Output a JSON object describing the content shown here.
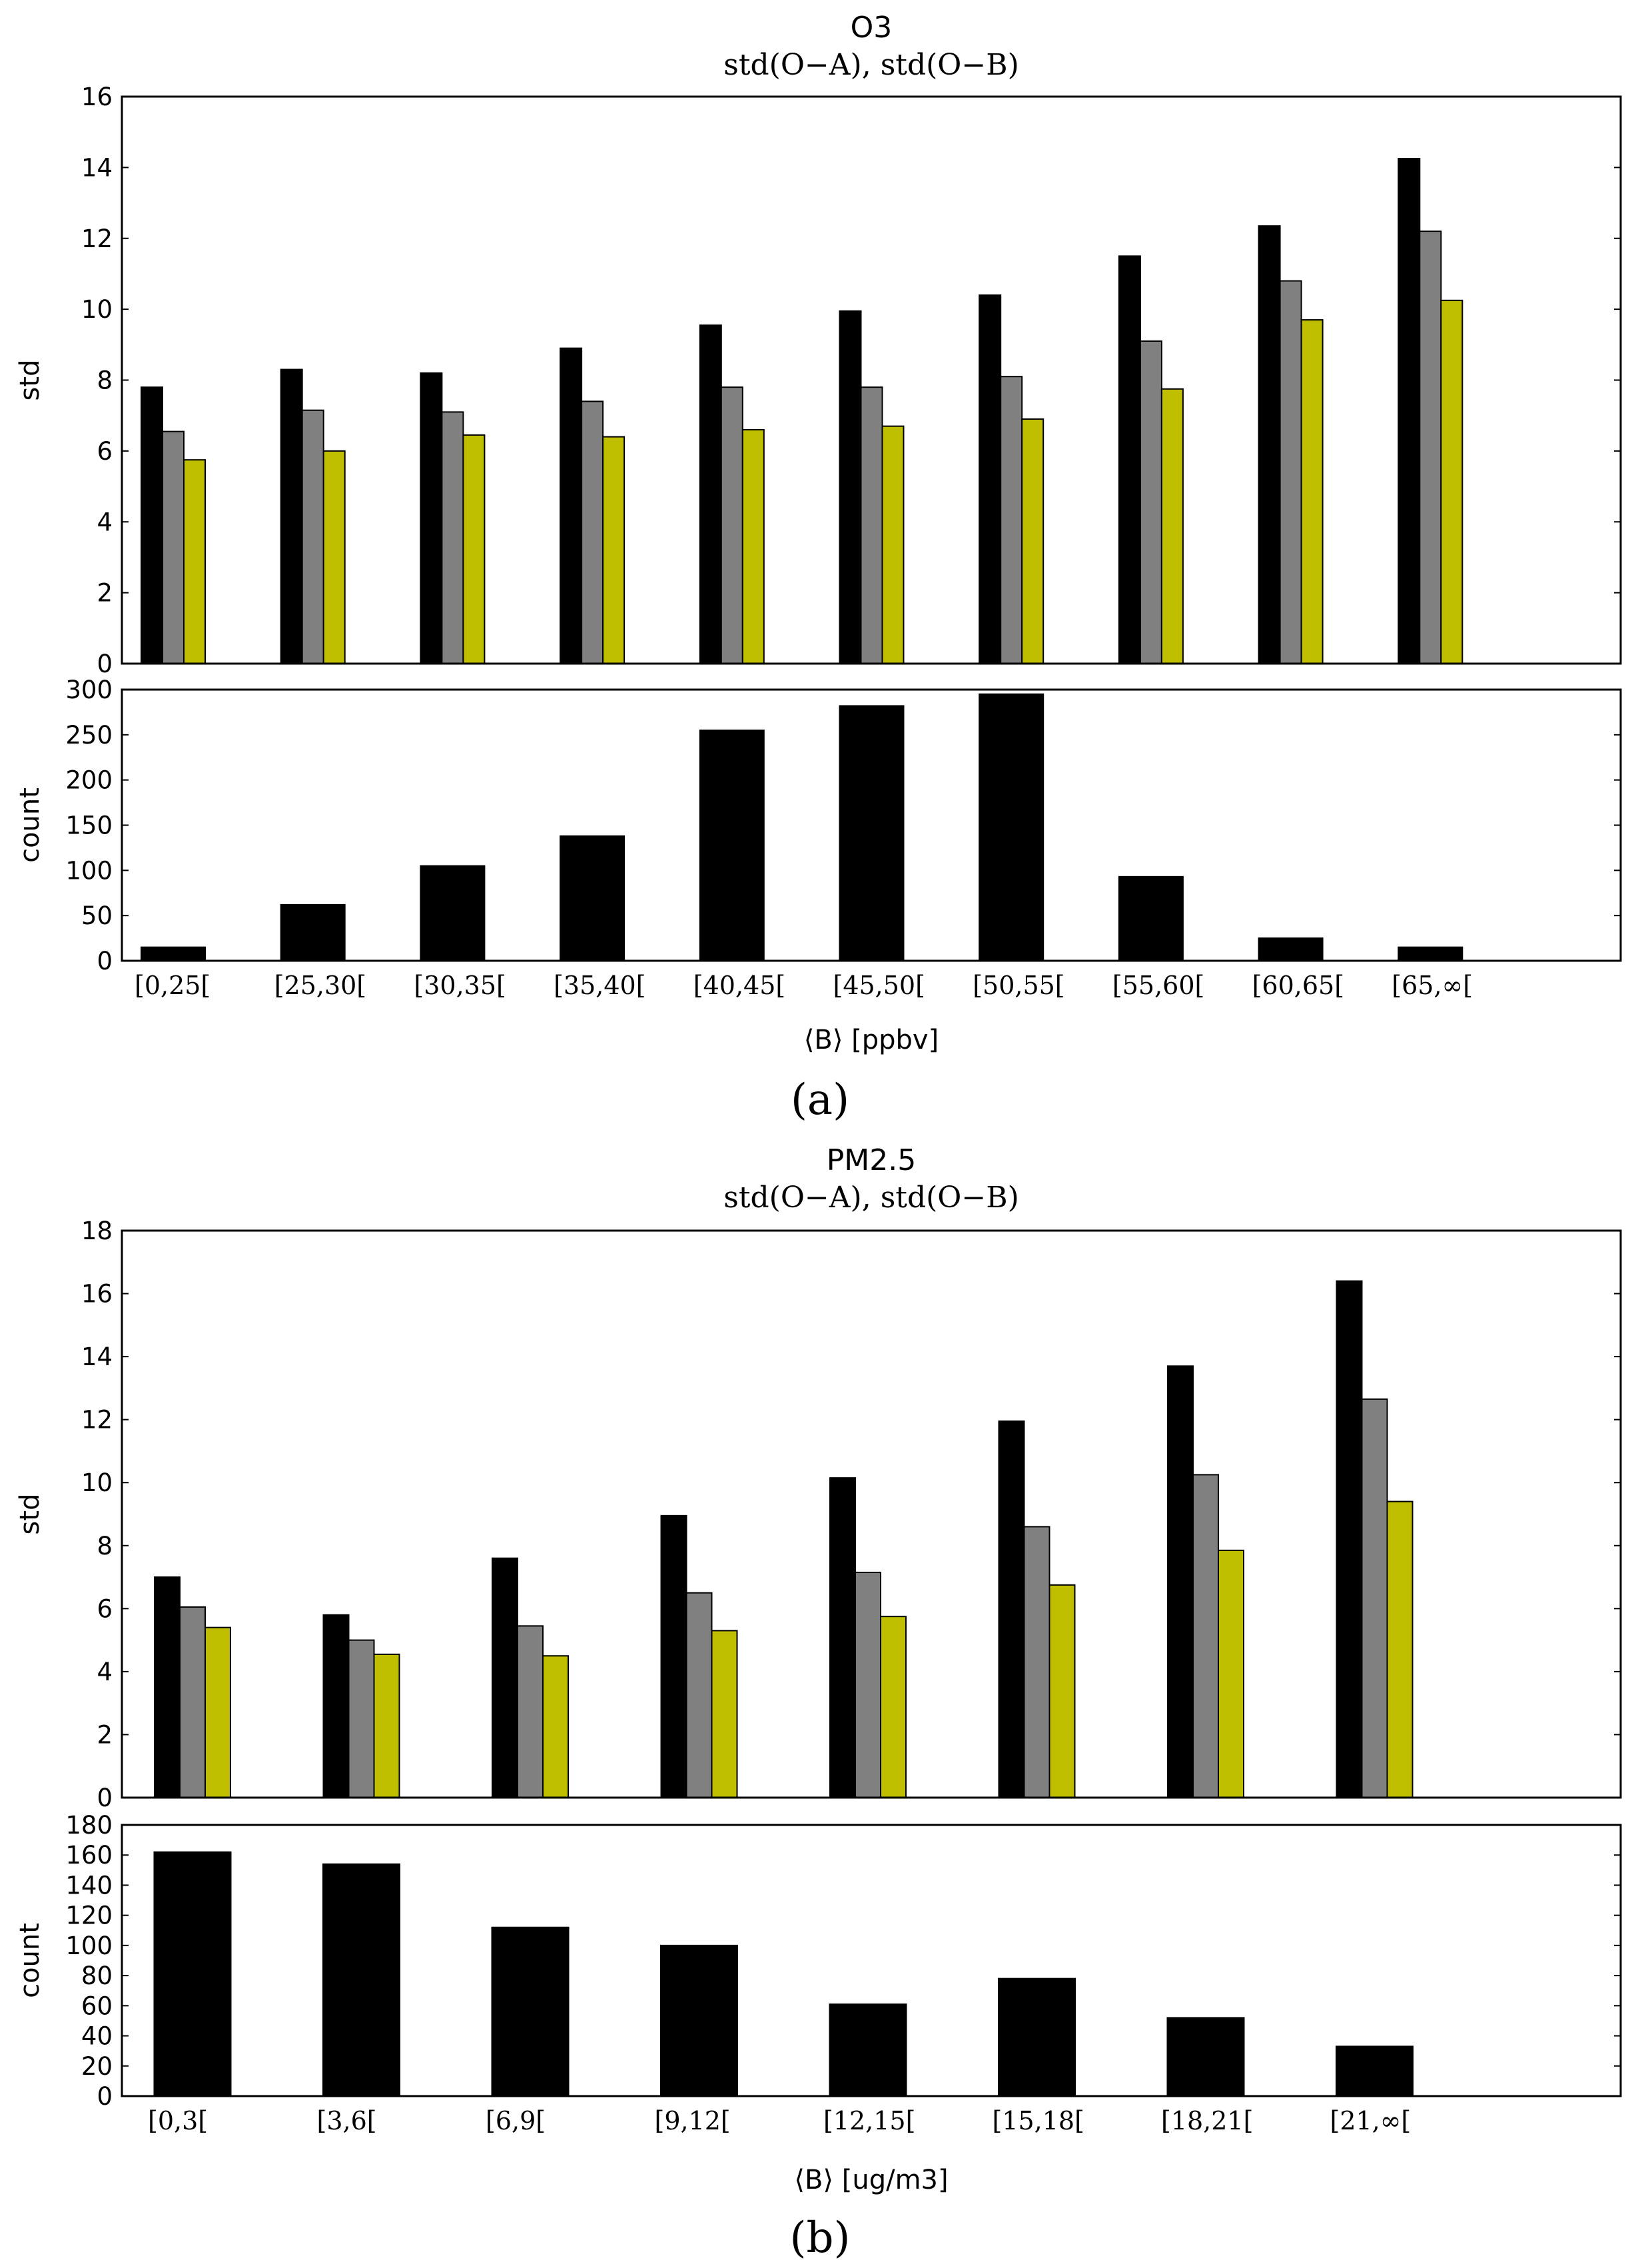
{
  "chart_data": [
    {
      "type": "bar",
      "panel_label": "(a)",
      "title": "O3",
      "subtitle": "std(O−A), std(O−B)",
      "xlabel": "⟨B⟩ [ppbv]",
      "categories": [
        "[0,25[",
        "[25,30[",
        "[30,35[",
        "[35,40[",
        "[40,45[",
        "[45,50[",
        "[50,55[",
        "[55,60[",
        "[60,65[",
        "[65,∞["
      ],
      "std_panel": {
        "ylabel": "std",
        "ylim": [
          0,
          16
        ],
        "yticks": [
          0,
          2,
          4,
          6,
          8,
          10,
          12,
          14,
          16
        ],
        "series": [
          {
            "name": "black",
            "color": "#000000",
            "values": [
              7.8,
              8.3,
              8.2,
              8.9,
              9.55,
              9.95,
              10.4,
              11.5,
              12.35,
              14.25
            ]
          },
          {
            "name": "grey",
            "color": "#808080",
            "values": [
              6.55,
              7.15,
              7.1,
              7.4,
              7.8,
              7.8,
              8.1,
              9.1,
              10.8,
              12.2
            ]
          },
          {
            "name": "yellow",
            "color": "#bfbf00",
            "values": [
              5.75,
              6.0,
              6.45,
              6.4,
              6.6,
              6.7,
              6.9,
              7.75,
              9.7,
              10.25
            ]
          }
        ]
      },
      "count_panel": {
        "ylabel": "count",
        "ylim": [
          0,
          300
        ],
        "yticks": [
          0,
          50,
          100,
          150,
          200,
          250,
          300
        ],
        "values": [
          15,
          62,
          105,
          138,
          255,
          282,
          295,
          93,
          25,
          15
        ]
      }
    },
    {
      "type": "bar",
      "panel_label": "(b)",
      "title": "PM2.5",
      "subtitle": "std(O−A), std(O−B)",
      "xlabel": "⟨B⟩ [ug/m3]",
      "categories": [
        "[0,3[",
        "[3,6[",
        "[6,9[",
        "[9,12[",
        "[12,15[",
        "[15,18[",
        "[18,21[",
        "[21,∞["
      ],
      "std_panel": {
        "ylabel": "std",
        "ylim": [
          0,
          18
        ],
        "yticks": [
          0,
          2,
          4,
          6,
          8,
          10,
          12,
          14,
          16,
          18
        ],
        "series": [
          {
            "name": "black",
            "color": "#000000",
            "values": [
              7.0,
              5.8,
              7.6,
              8.95,
              10.15,
              11.95,
              13.7,
              16.4
            ]
          },
          {
            "name": "grey",
            "color": "#808080",
            "values": [
              6.05,
              5.0,
              5.45,
              6.5,
              7.15,
              8.6,
              10.25,
              12.65
            ]
          },
          {
            "name": "yellow",
            "color": "#bfbf00",
            "values": [
              5.4,
              4.55,
              4.5,
              5.3,
              5.75,
              6.75,
              7.85,
              9.4
            ]
          }
        ]
      },
      "count_panel": {
        "ylabel": "count",
        "ylim": [
          0,
          180
        ],
        "yticks": [
          0,
          20,
          40,
          60,
          80,
          100,
          120,
          140,
          160,
          180
        ],
        "values": [
          162,
          154,
          112,
          100,
          61,
          78,
          52,
          33
        ]
      }
    }
  ]
}
